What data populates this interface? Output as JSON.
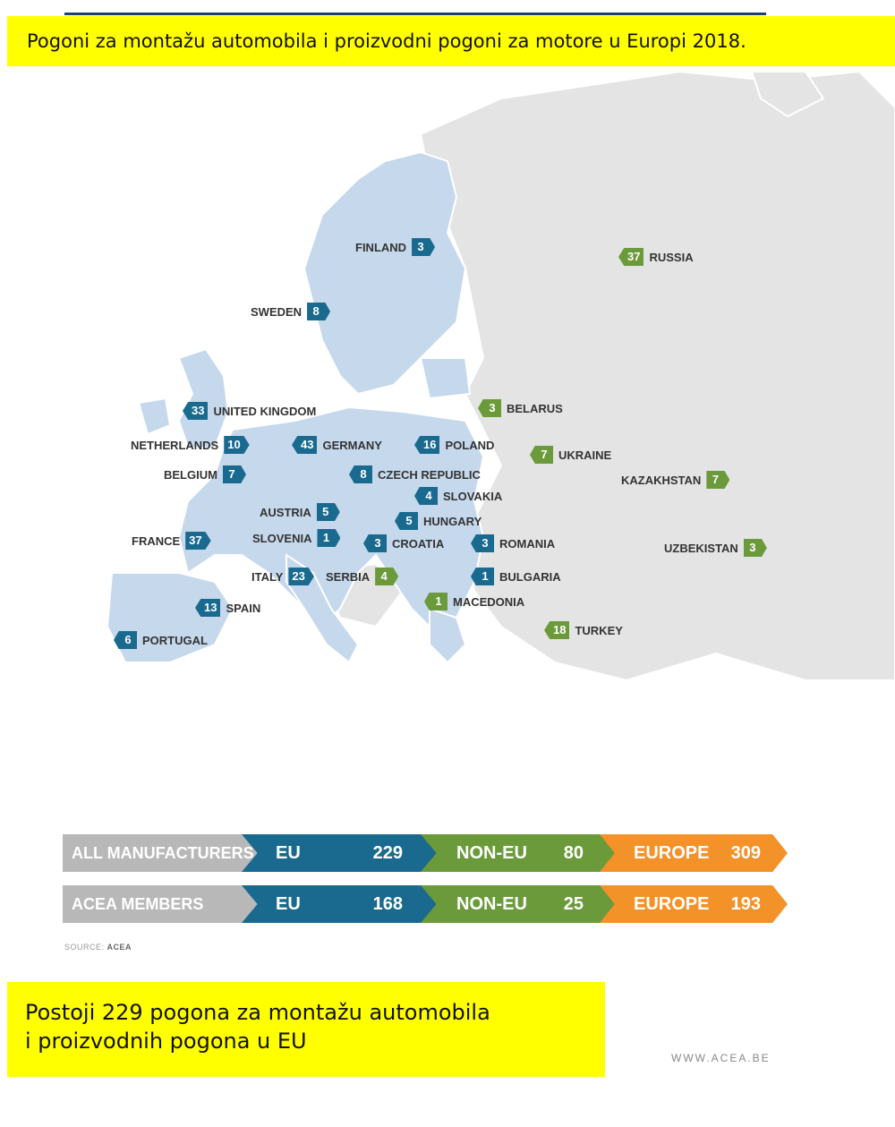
{
  "title": "Pogoni za montažu automobila i proizvodni pogoni za motore u Europi 2018.",
  "colors": {
    "eu": "#1a6a8f",
    "non_eu": "#6a9a3a",
    "europe": "#f4922a",
    "highlight": "#ffff00",
    "eu_land": "#c5d8ec",
    "non_eu_land": "#e4e4e4"
  },
  "countries": [
    {
      "name": "FINLAND",
      "value": "3",
      "group": "eu"
    },
    {
      "name": "SWEDEN",
      "value": "8",
      "group": "eu"
    },
    {
      "name": "UNITED KINGDOM",
      "value": "33",
      "group": "eu"
    },
    {
      "name": "NETHERLANDS",
      "value": "10",
      "group": "eu"
    },
    {
      "name": "BELGIUM",
      "value": "7",
      "group": "eu"
    },
    {
      "name": "GERMANY",
      "value": "43",
      "group": "eu"
    },
    {
      "name": "POLAND",
      "value": "16",
      "group": "eu"
    },
    {
      "name": "CZECH REPUBLIC",
      "value": "8",
      "group": "eu"
    },
    {
      "name": "SLOVAKIA",
      "value": "4",
      "group": "eu"
    },
    {
      "name": "AUSTRIA",
      "value": "5",
      "group": "eu"
    },
    {
      "name": "HUNGARY",
      "value": "5",
      "group": "eu"
    },
    {
      "name": "FRANCE",
      "value": "37",
      "group": "eu"
    },
    {
      "name": "SLOVENIA",
      "value": "1",
      "group": "eu"
    },
    {
      "name": "CROATIA",
      "value": "3",
      "group": "eu"
    },
    {
      "name": "ROMANIA",
      "value": "3",
      "group": "eu"
    },
    {
      "name": "ITALY",
      "value": "23",
      "group": "eu"
    },
    {
      "name": "SERBIA",
      "value": "4",
      "group": "non_eu"
    },
    {
      "name": "BULGARIA",
      "value": "1",
      "group": "eu"
    },
    {
      "name": "MACEDONIA",
      "value": "1",
      "group": "non_eu"
    },
    {
      "name": "SPAIN",
      "value": "13",
      "group": "eu"
    },
    {
      "name": "PORTUGAL",
      "value": "6",
      "group": "eu"
    },
    {
      "name": "RUSSIA",
      "value": "37",
      "group": "non_eu"
    },
    {
      "name": "BELARUS",
      "value": "3",
      "group": "non_eu"
    },
    {
      "name": "UKRAINE",
      "value": "7",
      "group": "non_eu"
    },
    {
      "name": "KAZAKHSTAN",
      "value": "7",
      "group": "non_eu"
    },
    {
      "name": "UZBEKISTAN",
      "value": "3",
      "group": "non_eu"
    },
    {
      "name": "TURKEY",
      "value": "18",
      "group": "non_eu"
    }
  ],
  "summary": [
    {
      "label": "ALL MANUFACTURERS",
      "eu_label": "EU",
      "eu_value": "229",
      "non_eu_label": "NON-EU",
      "non_eu_value": "80",
      "europe_label": "EUROPE",
      "europe_value": "309"
    },
    {
      "label": "ACEA MEMBERS",
      "eu_label": "EU",
      "eu_value": "168",
      "non_eu_label": "NON-EU",
      "non_eu_value": "25",
      "europe_label": "EUROPE",
      "europe_value": "193"
    }
  ],
  "source": {
    "prefix": "SOURCE:",
    "name": "ACEA"
  },
  "note": {
    "line1": "Postoji 229 pogona za montažu automobila",
    "line2": "i proizvodnih pogona u EU"
  },
  "website": "WWW.ACEA.BE"
}
